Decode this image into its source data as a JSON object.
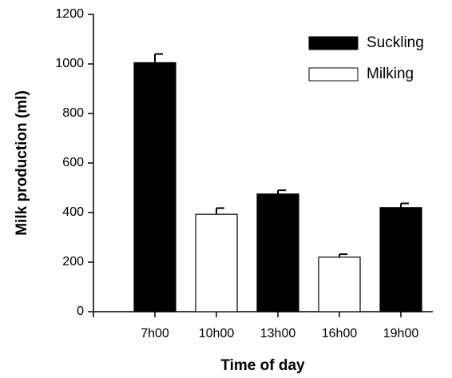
{
  "chart_data": {
    "type": "bar",
    "x_label": "Time of day",
    "y_label": "Milk production (ml)",
    "categories": [
      "7h00",
      "10h00",
      "13h00",
      "16h00",
      "19h00"
    ],
    "series": [
      {
        "name": "Suckling",
        "color": "#000000",
        "values": [
          1005,
          null,
          475,
          null,
          420
        ],
        "errors": [
          35,
          null,
          15,
          null,
          17
        ]
      },
      {
        "name": "Milking",
        "color": "#ffffff",
        "values": [
          null,
          393,
          null,
          220,
          null
        ],
        "errors": [
          null,
          25,
          null,
          12,
          null
        ]
      }
    ],
    "ylim": [
      0,
      1200
    ],
    "yticks": [
      0,
      200,
      400,
      600,
      800,
      1000,
      1200
    ],
    "grid": false,
    "legend": "upper right"
  }
}
